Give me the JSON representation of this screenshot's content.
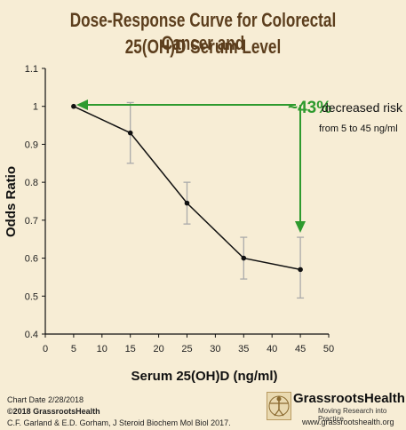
{
  "title_line1": "Dose-Response Curve for Colorectal Cancer and",
  "title_line2": "25(OH)D Serum Level",
  "chart_data": {
    "type": "line",
    "title": "Dose-Response Curve for Colorectal Cancer and 25(OH)D Serum Level",
    "xlabel": "Serum 25(OH)D (ng/ml)",
    "ylabel": "Odds Ratio",
    "xlim": [
      0,
      50
    ],
    "ylim": [
      0.4,
      1.1
    ],
    "x_ticks": [
      0,
      5,
      10,
      15,
      20,
      25,
      30,
      35,
      40,
      45,
      50
    ],
    "y_ticks": [
      0.4,
      0.5,
      0.6,
      0.7,
      0.8,
      0.9,
      1,
      1.1
    ],
    "series": [
      {
        "x": [
          5,
          15,
          25,
          35,
          45
        ],
        "values": [
          1.0,
          0.93,
          0.745,
          0.6,
          0.57
        ],
        "ci_low": [
          1.0,
          0.85,
          0.69,
          0.545,
          0.495
        ],
        "ci_high": [
          1.0,
          1.01,
          0.8,
          0.655,
          0.655
        ]
      }
    ],
    "annotation": {
      "percent": "~43%",
      "text": "decreased risk",
      "subtext": "from 5 to 45 ng/ml",
      "color": "#2e9a2e"
    },
    "line_color": "#111111",
    "errorbar_color": "#aaaaaa"
  },
  "footer": {
    "chart_date": "Chart Date 2/28/2018",
    "copyright": "©2018 GrassrootsHealth",
    "citation": "C.F. Garland & E.D. Gorham, J Steroid Biochem Mol Biol 2017."
  },
  "logo": {
    "name": "GrassrootsHealth",
    "tagline": "Moving Research into Practice",
    "url": "www.grassrootshealth.org",
    "icon": "vitruvian-man-icon"
  },
  "colors": {
    "background": "#f7edd5",
    "title": "#5c3e1d",
    "accent": "#2e9a2e"
  }
}
